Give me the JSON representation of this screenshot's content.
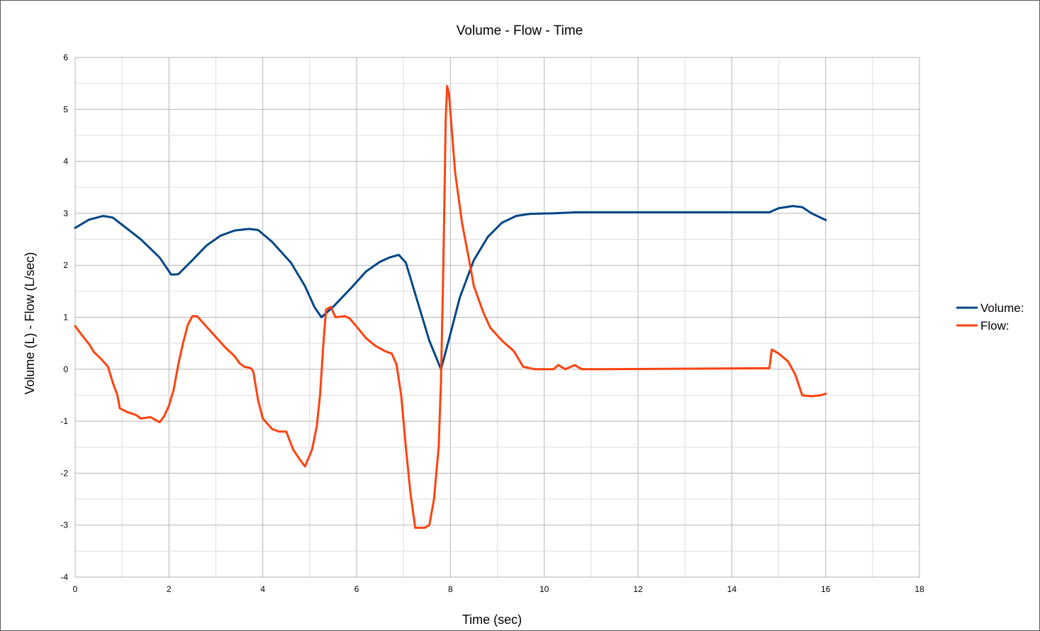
{
  "chart_data": {
    "type": "line",
    "title": "Volume - Flow - Time",
    "xlabel": "Time (sec)",
    "ylabel": "Volume (L) - Flow (L/sec)",
    "xlim": [
      0,
      18
    ],
    "ylim": [
      -4,
      6
    ],
    "x_ticks": [
      0,
      2,
      4,
      6,
      8,
      10,
      12,
      14,
      16,
      18
    ],
    "y_ticks": [
      -4,
      -3,
      -2,
      -1,
      0,
      1,
      2,
      3,
      4,
      5,
      6
    ],
    "x_minor_step": 1,
    "y_minor_step": 0.5,
    "grid": true,
    "legend_position": "right",
    "series": [
      {
        "name": "Volume:",
        "color": "#004586",
        "points": [
          [
            0,
            2.72
          ],
          [
            0.3,
            2.88
          ],
          [
            0.6,
            2.95
          ],
          [
            0.8,
            2.92
          ],
          [
            1.0,
            2.78
          ],
          [
            1.4,
            2.5
          ],
          [
            1.8,
            2.15
          ],
          [
            2.05,
            1.82
          ],
          [
            2.2,
            1.83
          ],
          [
            2.5,
            2.1
          ],
          [
            2.8,
            2.38
          ],
          [
            3.1,
            2.57
          ],
          [
            3.4,
            2.67
          ],
          [
            3.7,
            2.7
          ],
          [
            3.9,
            2.68
          ],
          [
            4.2,
            2.45
          ],
          [
            4.6,
            2.05
          ],
          [
            4.9,
            1.6
          ],
          [
            5.1,
            1.2
          ],
          [
            5.25,
            1.0
          ],
          [
            5.5,
            1.2
          ],
          [
            5.9,
            1.58
          ],
          [
            6.2,
            1.88
          ],
          [
            6.5,
            2.07
          ],
          [
            6.7,
            2.15
          ],
          [
            6.9,
            2.2
          ],
          [
            7.05,
            2.05
          ],
          [
            7.3,
            1.3
          ],
          [
            7.55,
            0.55
          ],
          [
            7.8,
            0.0
          ],
          [
            8.0,
            0.68
          ],
          [
            8.2,
            1.38
          ],
          [
            8.5,
            2.1
          ],
          [
            8.8,
            2.55
          ],
          [
            9.1,
            2.82
          ],
          [
            9.4,
            2.95
          ],
          [
            9.7,
            2.99
          ],
          [
            10.2,
            3.0
          ],
          [
            10.7,
            3.02
          ],
          [
            14.8,
            3.02
          ],
          [
            15.0,
            3.1
          ],
          [
            15.3,
            3.14
          ],
          [
            15.5,
            3.12
          ],
          [
            15.7,
            3.0
          ],
          [
            16.0,
            2.87
          ]
        ]
      },
      {
        "name": "Flow:",
        "color": "#ff420e",
        "points": [
          [
            0,
            0.83
          ],
          [
            0.15,
            0.65
          ],
          [
            0.3,
            0.48
          ],
          [
            0.4,
            0.33
          ],
          [
            0.55,
            0.2
          ],
          [
            0.7,
            0.05
          ],
          [
            0.8,
            -0.25
          ],
          [
            0.9,
            -0.5
          ],
          [
            0.95,
            -0.75
          ],
          [
            1.1,
            -0.82
          ],
          [
            1.3,
            -0.88
          ],
          [
            1.4,
            -0.95
          ],
          [
            1.6,
            -0.92
          ],
          [
            1.8,
            -1.02
          ],
          [
            1.9,
            -0.9
          ],
          [
            2.0,
            -0.7
          ],
          [
            2.1,
            -0.4
          ],
          [
            2.2,
            0.1
          ],
          [
            2.3,
            0.5
          ],
          [
            2.4,
            0.85
          ],
          [
            2.5,
            1.02
          ],
          [
            2.6,
            1.02
          ],
          [
            2.8,
            0.82
          ],
          [
            3.0,
            0.62
          ],
          [
            3.2,
            0.42
          ],
          [
            3.4,
            0.25
          ],
          [
            3.5,
            0.12
          ],
          [
            3.6,
            0.05
          ],
          [
            3.75,
            0.02
          ],
          [
            3.8,
            -0.05
          ],
          [
            3.9,
            -0.6
          ],
          [
            4.0,
            -0.95
          ],
          [
            4.2,
            -1.15
          ],
          [
            4.35,
            -1.2
          ],
          [
            4.5,
            -1.2
          ],
          [
            4.65,
            -1.55
          ],
          [
            4.8,
            -1.75
          ],
          [
            4.9,
            -1.87
          ],
          [
            5.05,
            -1.55
          ],
          [
            5.15,
            -1.1
          ],
          [
            5.22,
            -0.5
          ],
          [
            5.3,
            0.6
          ],
          [
            5.35,
            1.15
          ],
          [
            5.45,
            1.2
          ],
          [
            5.55,
            1.0
          ],
          [
            5.75,
            1.02
          ],
          [
            5.85,
            0.98
          ],
          [
            6.0,
            0.82
          ],
          [
            6.2,
            0.6
          ],
          [
            6.4,
            0.45
          ],
          [
            6.6,
            0.35
          ],
          [
            6.75,
            0.3
          ],
          [
            6.85,
            0.1
          ],
          [
            6.95,
            -0.5
          ],
          [
            7.05,
            -1.5
          ],
          [
            7.15,
            -2.4
          ],
          [
            7.25,
            -3.05
          ],
          [
            7.35,
            -3.05
          ],
          [
            7.45,
            -3.05
          ],
          [
            7.55,
            -3.0
          ],
          [
            7.65,
            -2.5
          ],
          [
            7.75,
            -1.5
          ],
          [
            7.8,
            -0.2
          ],
          [
            7.85,
            2.0
          ],
          [
            7.9,
            4.8
          ],
          [
            7.93,
            5.45
          ],
          [
            7.97,
            5.3
          ],
          [
            8.1,
            3.8
          ],
          [
            8.25,
            2.8
          ],
          [
            8.4,
            2.1
          ],
          [
            8.5,
            1.6
          ],
          [
            8.7,
            1.1
          ],
          [
            8.85,
            0.8
          ],
          [
            9.1,
            0.55
          ],
          [
            9.35,
            0.35
          ],
          [
            9.55,
            0.05
          ],
          [
            9.8,
            0.0
          ],
          [
            10.2,
            0.0
          ],
          [
            10.3,
            0.08
          ],
          [
            10.45,
            0.0
          ],
          [
            10.65,
            0.08
          ],
          [
            10.8,
            0.0
          ],
          [
            11.2,
            0.0
          ],
          [
            14.8,
            0.02
          ],
          [
            14.85,
            0.38
          ],
          [
            15.0,
            0.3
          ],
          [
            15.2,
            0.15
          ],
          [
            15.35,
            -0.1
          ],
          [
            15.5,
            -0.5
          ],
          [
            15.7,
            -0.52
          ],
          [
            15.9,
            -0.5
          ],
          [
            16.0,
            -0.47
          ]
        ]
      }
    ]
  }
}
